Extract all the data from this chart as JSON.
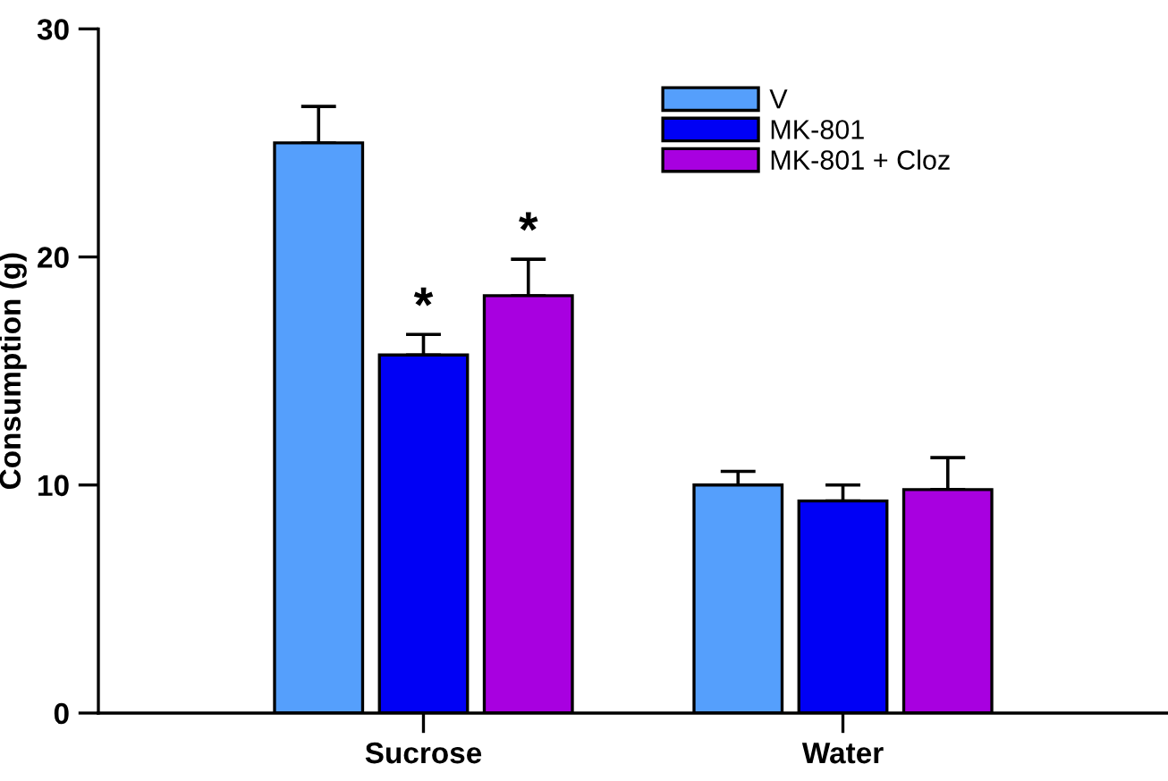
{
  "chart_data": {
    "type": "bar",
    "ylabel": "Consumption (g)",
    "categories": [
      "Sucrose",
      "Water"
    ],
    "series": [
      {
        "name": "V",
        "color": "#559ffc",
        "values": [
          25.0,
          10.0
        ],
        "errors": [
          [
            25.0,
            26.6
          ],
          [
            10.0,
            10.6
          ]
        ]
      },
      {
        "name": "MK-801",
        "color": "#0000f5",
        "values": [
          15.7,
          9.3
        ],
        "errors": [
          [
            15.7,
            16.6
          ],
          [
            9.3,
            10.0
          ]
        ],
        "value_labels": [
          "*",
          null
        ]
      },
      {
        "name": "MK-801 + Cloz",
        "color": "#a800e0",
        "values": [
          18.3,
          9.8
        ],
        "errors": [
          [
            18.3,
            19.9
          ],
          [
            9.8,
            11.2
          ]
        ],
        "value_labels": [
          "*",
          null
        ]
      }
    ],
    "ylim": [
      0,
      30
    ],
    "yticks": [
      0,
      10,
      20,
      30
    ],
    "grid": false,
    "legend": "top right"
  }
}
